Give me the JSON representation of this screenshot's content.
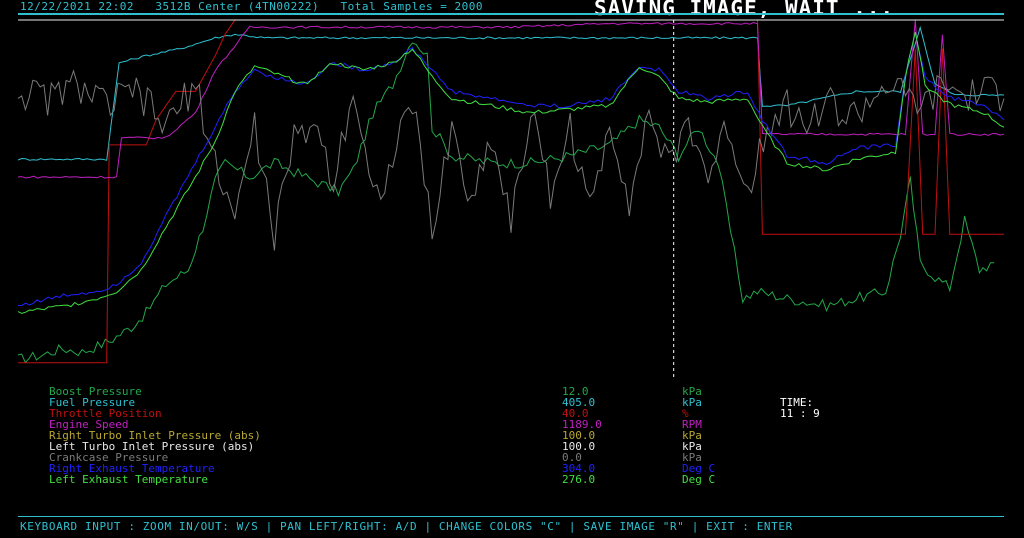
{
  "header": {
    "date_time": "12/22/2021 22:02",
    "machine": "3512B Center (4TN00222)",
    "samples": "Total Samples = 2000"
  },
  "status_message": "SAVING IMAGE, WAIT ...",
  "colors": {
    "background": "#000000",
    "frame": "#2fc0d0",
    "cursor": "#ffffff"
  },
  "chart_data": {
    "type": "line",
    "x_range": [
      0,
      2000
    ],
    "cursor_x": 1330,
    "series": [
      {
        "name": "Boost Pressure",
        "color": "#22a84a",
        "points": [
          [
            0,
            0.05
          ],
          [
            45,
            0.06
          ],
          [
            90,
            0.08
          ],
          [
            130,
            0.07
          ],
          [
            185,
            0.1
          ],
          [
            230,
            0.14
          ],
          [
            260,
            0.18
          ],
          [
            300,
            0.26
          ],
          [
            345,
            0.3
          ],
          [
            375,
            0.42
          ],
          [
            400,
            0.55
          ],
          [
            420,
            0.6
          ],
          [
            470,
            0.56
          ],
          [
            520,
            0.6
          ],
          [
            600,
            0.55
          ],
          [
            650,
            0.52
          ],
          [
            680,
            0.58
          ],
          [
            720,
            0.74
          ],
          [
            760,
            0.82
          ],
          [
            800,
            0.95
          ],
          [
            830,
            0.9
          ],
          [
            840,
            0.7
          ],
          [
            880,
            0.62
          ],
          [
            960,
            0.6
          ],
          [
            1040,
            0.6
          ],
          [
            1120,
            0.62
          ],
          [
            1200,
            0.65
          ],
          [
            1260,
            0.72
          ],
          [
            1300,
            0.7
          ],
          [
            1340,
            0.62
          ],
          [
            1380,
            0.7
          ],
          [
            1420,
            0.6
          ],
          [
            1470,
            0.22
          ],
          [
            1500,
            0.24
          ],
          [
            1560,
            0.22
          ],
          [
            1640,
            0.2
          ],
          [
            1700,
            0.22
          ],
          [
            1760,
            0.24
          ],
          [
            1790,
            0.4
          ],
          [
            1810,
            0.55
          ],
          [
            1830,
            0.32
          ],
          [
            1860,
            0.28
          ],
          [
            1890,
            0.25
          ],
          [
            1920,
            0.44
          ],
          [
            1950,
            0.3
          ],
          [
            1980,
            0.32
          ]
        ]
      },
      {
        "name": "Fuel Pressure",
        "color": "#2fc0d0",
        "points": [
          [
            0,
            0.61
          ],
          [
            100,
            0.61
          ],
          [
            180,
            0.61
          ],
          [
            205,
            0.88
          ],
          [
            260,
            0.9
          ],
          [
            330,
            0.92
          ],
          [
            400,
            0.95
          ],
          [
            440,
            0.96
          ],
          [
            500,
            0.95
          ],
          [
            600,
            0.95
          ],
          [
            800,
            0.95
          ],
          [
            1000,
            0.95
          ],
          [
            1200,
            0.95
          ],
          [
            1400,
            0.95
          ],
          [
            1500,
            0.95
          ],
          [
            1510,
            0.76
          ],
          [
            1560,
            0.76
          ],
          [
            1700,
            0.8
          ],
          [
            1790,
            0.8
          ],
          [
            1830,
            0.98
          ],
          [
            1860,
            0.82
          ],
          [
            1900,
            0.79
          ],
          [
            2000,
            0.79
          ]
        ]
      },
      {
        "name": "Throttle Position",
        "color": "#c01010",
        "points": [
          [
            0,
            0.04
          ],
          [
            180,
            0.04
          ],
          [
            185,
            0.65
          ],
          [
            260,
            0.65
          ],
          [
            280,
            0.72
          ],
          [
            320,
            0.8
          ],
          [
            360,
            0.8
          ],
          [
            380,
            0.85
          ],
          [
            400,
            0.9
          ],
          [
            420,
            0.96
          ],
          [
            440,
            1.0
          ],
          [
            1500,
            1.0
          ],
          [
            1510,
            0.4
          ],
          [
            1800,
            0.4
          ],
          [
            1820,
            0.92
          ],
          [
            1835,
            0.4
          ],
          [
            1860,
            0.4
          ],
          [
            1875,
            0.92
          ],
          [
            1890,
            0.4
          ],
          [
            2000,
            0.4
          ]
        ]
      },
      {
        "name": "Engine Speed",
        "color": "#c020c0",
        "points": [
          [
            0,
            0.56
          ],
          [
            200,
            0.56
          ],
          [
            210,
            0.67
          ],
          [
            300,
            0.67
          ],
          [
            360,
            0.74
          ],
          [
            380,
            0.8
          ],
          [
            400,
            0.86
          ],
          [
            430,
            0.91
          ],
          [
            470,
            0.98
          ],
          [
            600,
            0.98
          ],
          [
            1000,
            0.98
          ],
          [
            1200,
            0.99
          ],
          [
            1330,
            0.99
          ],
          [
            1500,
            0.99
          ],
          [
            1510,
            0.68
          ],
          [
            1800,
            0.68
          ],
          [
            1820,
            1.0
          ],
          [
            1835,
            0.68
          ],
          [
            1860,
            0.68
          ],
          [
            1875,
            0.96
          ],
          [
            1890,
            0.68
          ],
          [
            2000,
            0.68
          ]
        ]
      },
      {
        "name": "Right Turbo Inlet Pressure (abs)",
        "color": "#b8a830",
        "points": [
          [
            0,
            1.0
          ],
          [
            2000,
            1.0
          ]
        ]
      },
      {
        "name": "Left Turbo Inlet Pressure (abs)",
        "color": "#e8e8e8",
        "points": [
          [
            0,
            1.0
          ],
          [
            2000,
            1.0
          ]
        ]
      },
      {
        "name": "Crankcase Pressure",
        "color": "#7a7a7a",
        "points": [
          [
            0,
            0.8
          ],
          [
            60,
            0.78
          ],
          [
            120,
            0.82
          ],
          [
            180,
            0.76
          ],
          [
            240,
            0.8
          ],
          [
            300,
            0.7
          ],
          [
            360,
            0.82
          ],
          [
            400,
            0.6
          ],
          [
            440,
            0.45
          ],
          [
            480,
            0.7
          ],
          [
            520,
            0.4
          ],
          [
            560,
            0.66
          ],
          [
            600,
            0.72
          ],
          [
            640,
            0.55
          ],
          [
            680,
            0.82
          ],
          [
            720,
            0.5
          ],
          [
            760,
            0.6
          ],
          [
            800,
            0.78
          ],
          [
            840,
            0.4
          ],
          [
            880,
            0.7
          ],
          [
            920,
            0.48
          ],
          [
            960,
            0.68
          ],
          [
            1000,
            0.44
          ],
          [
            1040,
            0.74
          ],
          [
            1080,
            0.52
          ],
          [
            1120,
            0.7
          ],
          [
            1160,
            0.46
          ],
          [
            1200,
            0.72
          ],
          [
            1240,
            0.5
          ],
          [
            1280,
            0.74
          ],
          [
            1320,
            0.58
          ],
          [
            1360,
            0.72
          ],
          [
            1400,
            0.56
          ],
          [
            1440,
            0.7
          ],
          [
            1480,
            0.52
          ],
          [
            1520,
            0.72
          ],
          [
            1560,
            0.76
          ],
          [
            1600,
            0.7
          ],
          [
            1640,
            0.78
          ],
          [
            1680,
            0.72
          ],
          [
            1720,
            0.76
          ],
          [
            1760,
            0.82
          ],
          [
            1800,
            0.78
          ],
          [
            1840,
            0.76
          ],
          [
            1880,
            0.82
          ],
          [
            1920,
            0.78
          ],
          [
            1960,
            0.8
          ],
          [
            2000,
            0.78
          ]
        ]
      },
      {
        "name": "Right Exhaust Temperature",
        "color": "#2020ff",
        "points": [
          [
            0,
            0.2
          ],
          [
            100,
            0.23
          ],
          [
            160,
            0.24
          ],
          [
            200,
            0.26
          ],
          [
            250,
            0.32
          ],
          [
            300,
            0.45
          ],
          [
            360,
            0.6
          ],
          [
            400,
            0.7
          ],
          [
            440,
            0.8
          ],
          [
            480,
            0.86
          ],
          [
            520,
            0.84
          ],
          [
            580,
            0.82
          ],
          [
            640,
            0.88
          ],
          [
            700,
            0.86
          ],
          [
            760,
            0.88
          ],
          [
            800,
            0.92
          ],
          [
            840,
            0.86
          ],
          [
            880,
            0.8
          ],
          [
            960,
            0.78
          ],
          [
            1040,
            0.76
          ],
          [
            1120,
            0.76
          ],
          [
            1200,
            0.78
          ],
          [
            1260,
            0.87
          ],
          [
            1300,
            0.86
          ],
          [
            1340,
            0.8
          ],
          [
            1400,
            0.78
          ],
          [
            1480,
            0.8
          ],
          [
            1510,
            0.72
          ],
          [
            1560,
            0.62
          ],
          [
            1640,
            0.6
          ],
          [
            1700,
            0.64
          ],
          [
            1780,
            0.65
          ],
          [
            1800,
            0.84
          ],
          [
            1820,
            0.97
          ],
          [
            1840,
            0.84
          ],
          [
            1870,
            0.8
          ],
          [
            1900,
            0.78
          ],
          [
            1960,
            0.76
          ],
          [
            2000,
            0.72
          ]
        ]
      },
      {
        "name": "Left Exhaust Temperature",
        "color": "#40e040",
        "points": [
          [
            0,
            0.18
          ],
          [
            100,
            0.2
          ],
          [
            160,
            0.22
          ],
          [
            200,
            0.24
          ],
          [
            250,
            0.3
          ],
          [
            300,
            0.42
          ],
          [
            360,
            0.56
          ],
          [
            400,
            0.66
          ],
          [
            440,
            0.8
          ],
          [
            480,
            0.87
          ],
          [
            520,
            0.85
          ],
          [
            580,
            0.82
          ],
          [
            640,
            0.88
          ],
          [
            700,
            0.86
          ],
          [
            760,
            0.88
          ],
          [
            800,
            0.92
          ],
          [
            840,
            0.84
          ],
          [
            880,
            0.78
          ],
          [
            960,
            0.76
          ],
          [
            1040,
            0.74
          ],
          [
            1120,
            0.75
          ],
          [
            1200,
            0.76
          ],
          [
            1260,
            0.87
          ],
          [
            1300,
            0.84
          ],
          [
            1340,
            0.78
          ],
          [
            1400,
            0.77
          ],
          [
            1480,
            0.78
          ],
          [
            1510,
            0.7
          ],
          [
            1560,
            0.6
          ],
          [
            1640,
            0.58
          ],
          [
            1700,
            0.61
          ],
          [
            1780,
            0.63
          ],
          [
            1800,
            0.84
          ],
          [
            1820,
            0.97
          ],
          [
            1840,
            0.82
          ],
          [
            1870,
            0.78
          ],
          [
            1900,
            0.76
          ],
          [
            1960,
            0.74
          ],
          [
            2000,
            0.7
          ]
        ]
      }
    ]
  },
  "legend": [
    {
      "name": "Boost Pressure",
      "value": "12.0",
      "unit": "kPa",
      "color": "#22a84a"
    },
    {
      "name": "Fuel Pressure",
      "value": "405.0",
      "unit": "kPa",
      "color": "#2fc0d0"
    },
    {
      "name": "Throttle Position",
      "value": "40.0",
      "unit": "%",
      "color": "#c01010"
    },
    {
      "name": "Engine Speed",
      "value": "1189.0",
      "unit": "RPM",
      "color": "#c020c0"
    },
    {
      "name": "Right Turbo Inlet Pressure (abs)",
      "value": "100.0",
      "unit": "kPa",
      "color": "#b8a830"
    },
    {
      "name": "Left Turbo Inlet Pressure (abs)",
      "value": "100.0",
      "unit": "kPa",
      "color": "#e8e8e8"
    },
    {
      "name": "Crankcase Pressure",
      "value": "0.0",
      "unit": "kPa",
      "color": "#7a7a7a"
    },
    {
      "name": "Right Exhaust Temperature",
      "value": "304.0",
      "unit": "Deg C",
      "color": "#2020ff"
    },
    {
      "name": "Left Exhaust Temperature",
      "value": "276.0",
      "unit": "Deg C",
      "color": "#40e040"
    }
  ],
  "time": {
    "label": "TIME:",
    "value": "11 : 9"
  },
  "footer": "KEYBOARD INPUT : ZOOM IN/OUT: W/S | PAN LEFT/RIGHT: A/D | CHANGE COLORS \"C\" | SAVE IMAGE \"R\" | EXIT : ENTER"
}
